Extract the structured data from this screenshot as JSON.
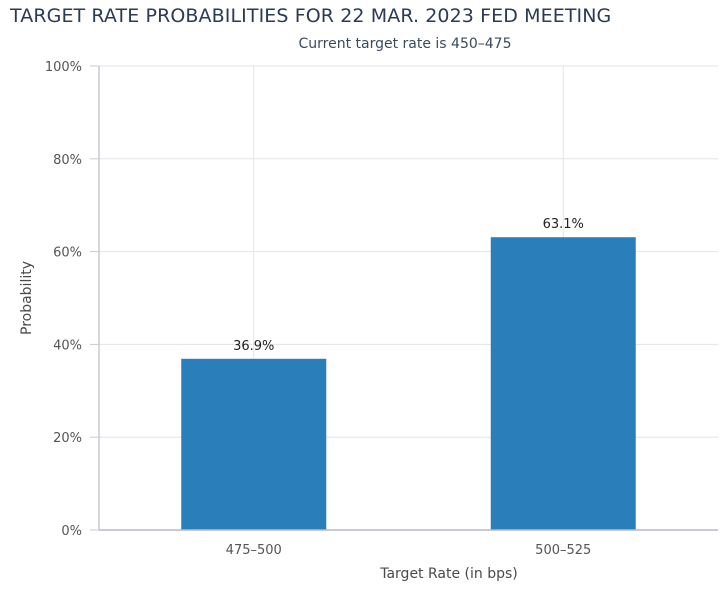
{
  "chart_data": {
    "type": "bar",
    "title": "TARGET RATE PROBABILITIES FOR 22 MAR. 2023 FED MEETING",
    "subtitle": "Current target rate is 450–475",
    "xlabel": "Target Rate (in bps)",
    "ylabel": "Probability",
    "categories": [
      "475–500",
      "500–525"
    ],
    "values": [
      36.9,
      63.1
    ],
    "data_labels": [
      "36.9%",
      "63.1%"
    ],
    "ylim": [
      0,
      100
    ],
    "yticks": [
      0,
      20,
      40,
      60,
      80,
      100
    ],
    "ytick_labels": [
      "0%",
      "20%",
      "40%",
      "60%",
      "80%",
      "100%"
    ],
    "bar_color": "#2a7fba",
    "grid": true,
    "legend": "none"
  }
}
